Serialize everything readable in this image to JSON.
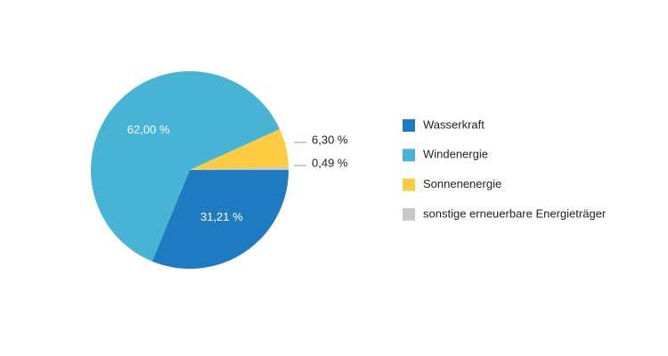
{
  "chart_data": {
    "type": "pie",
    "categories": [
      "Wasserkraft",
      "Windenergie",
      "Sonnenenergie",
      "sonstige erneuerbare Energieträger"
    ],
    "values": [
      31.21,
      62.0,
      6.3,
      0.49
    ],
    "value_labels": [
      "31,21 %",
      "62,00 %",
      "6,30 %",
      "0,49 %"
    ],
    "colors": [
      "#1f7bc1",
      "#47b4d6",
      "#fdcc43",
      "#c8c8c8"
    ],
    "legend": "right"
  }
}
